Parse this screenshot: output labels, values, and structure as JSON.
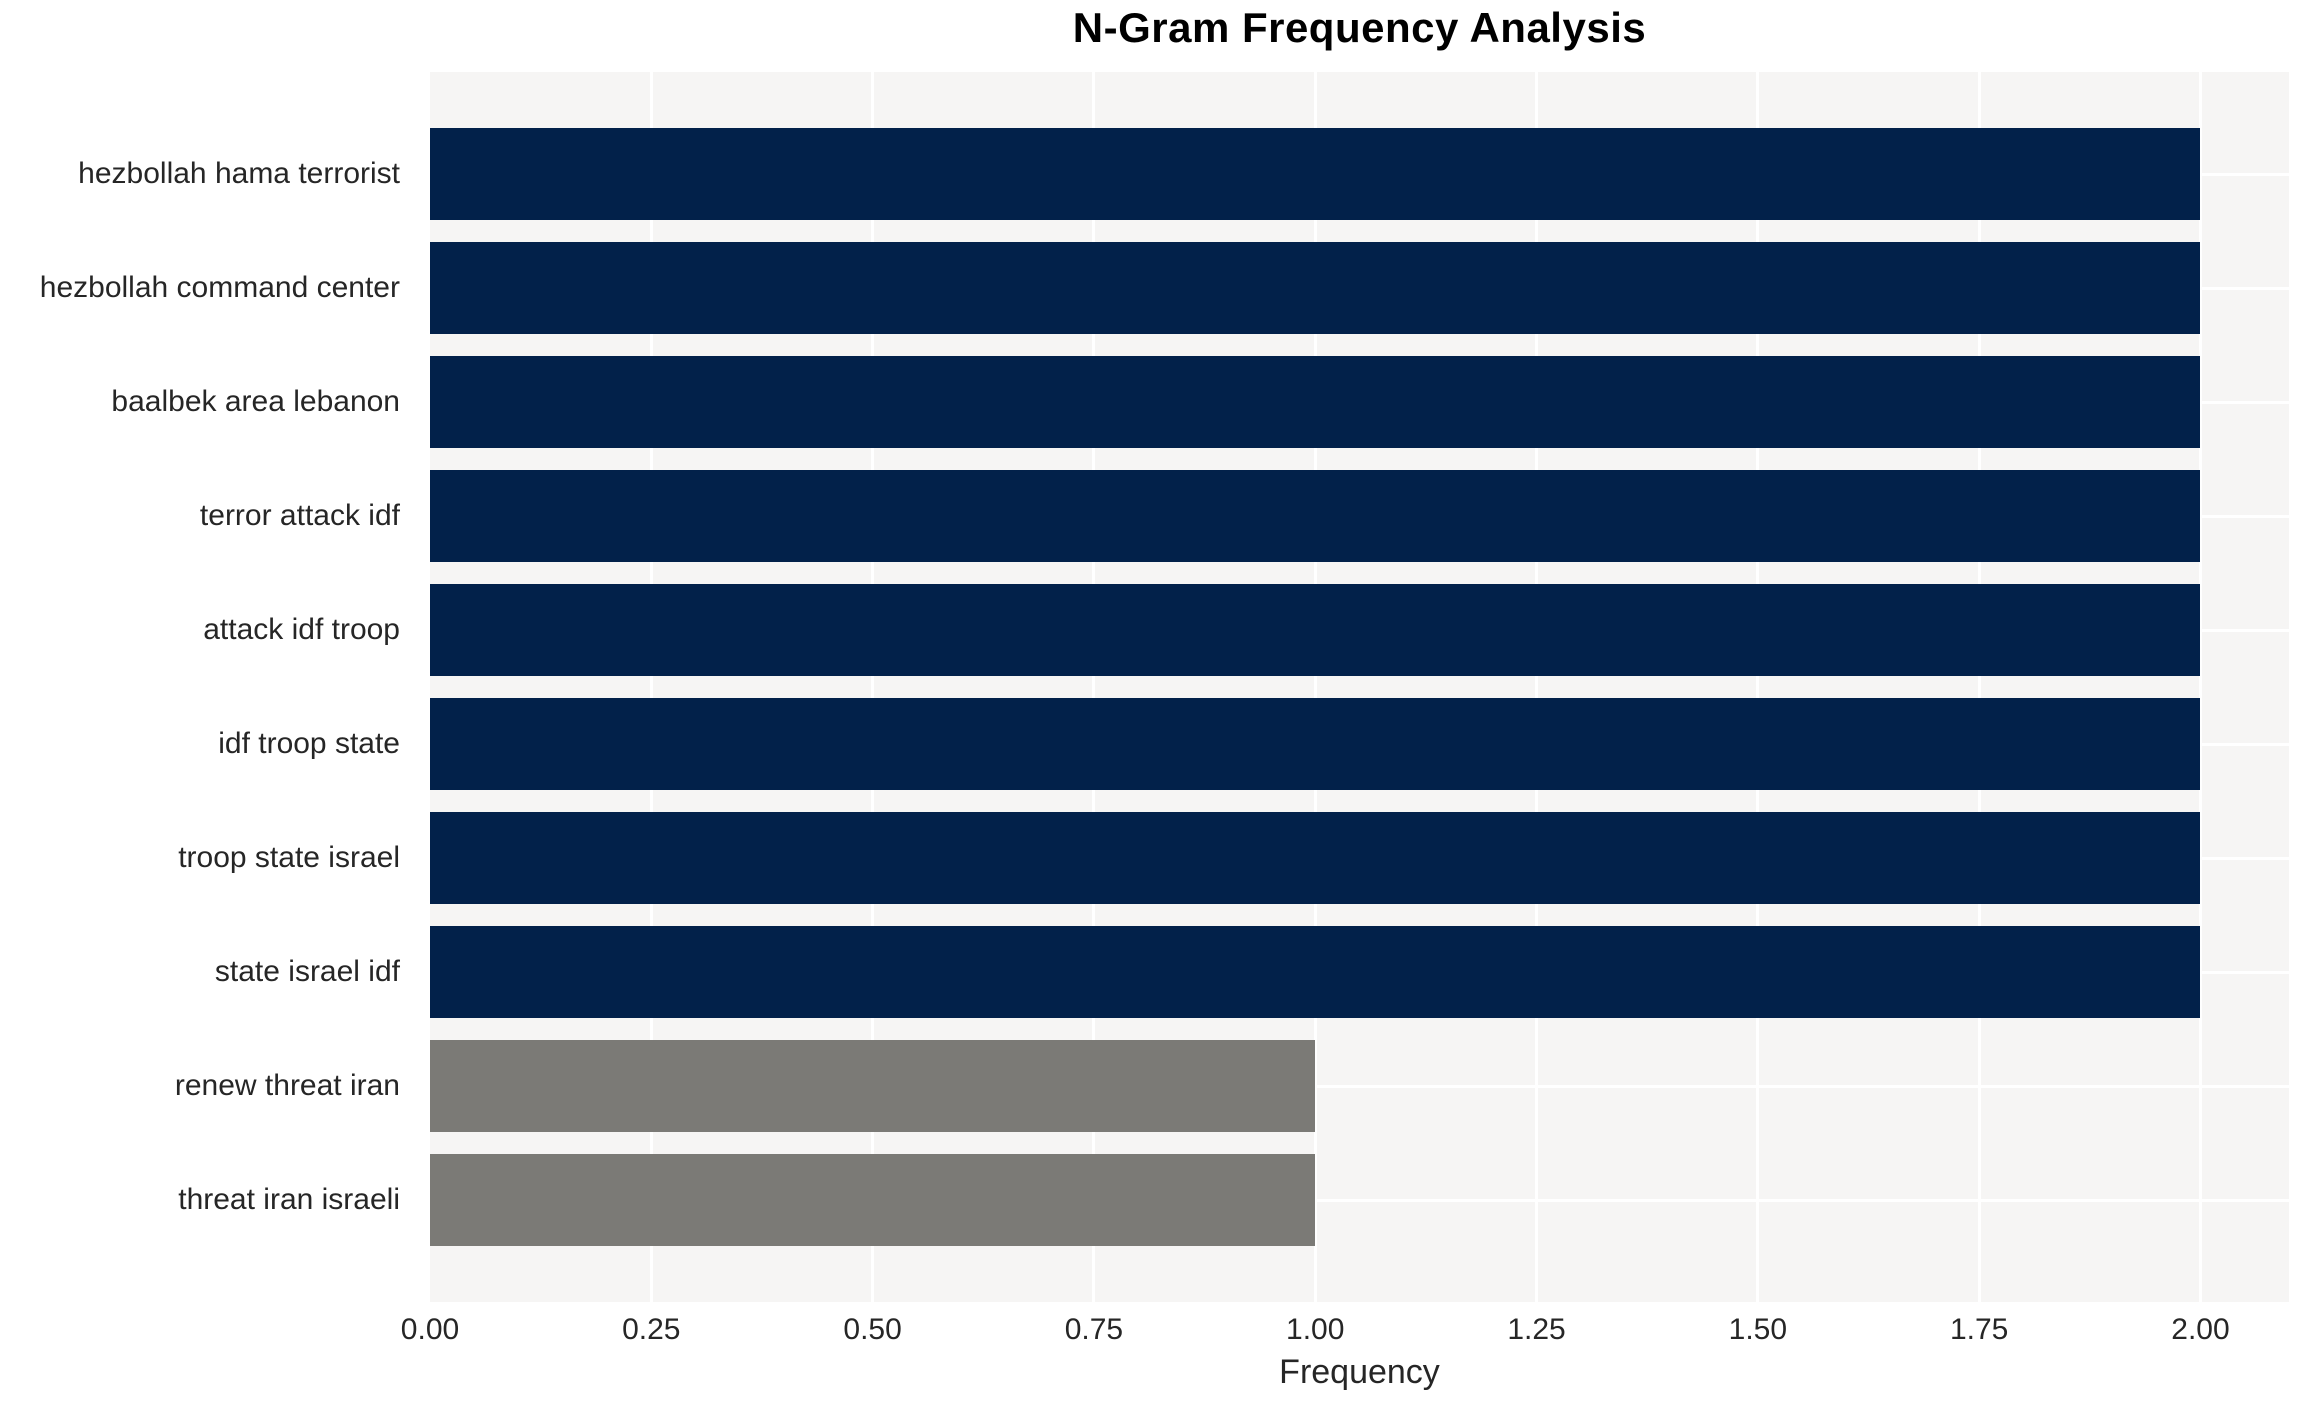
{
  "title": "N-Gram Frequency Analysis",
  "chart_data": {
    "type": "bar",
    "orientation": "horizontal",
    "title": "N-Gram Frequency Analysis",
    "xlabel": "Frequency",
    "ylabel": "",
    "categories": [
      "hezbollah hama terrorist",
      "hezbollah command center",
      "baalbek area lebanon",
      "terror attack idf",
      "attack idf troop",
      "idf troop state",
      "troop state israel",
      "state israel idf",
      "renew threat iran",
      "threat iran israeli"
    ],
    "values": [
      2,
      2,
      2,
      2,
      2,
      2,
      2,
      2,
      1,
      1
    ],
    "bar_colors": [
      "#02214a",
      "#02214a",
      "#02214a",
      "#02214a",
      "#02214a",
      "#02214a",
      "#02214a",
      "#02214a",
      "#7b7a76",
      "#7b7a76"
    ],
    "xlim": [
      0,
      2.1
    ],
    "xticks": [
      0,
      0.25,
      0.5,
      0.75,
      1.0,
      1.25,
      1.5,
      1.75,
      2.0
    ],
    "xtick_labels": [
      "0.00",
      "0.25",
      "0.50",
      "0.75",
      "1.00",
      "1.25",
      "1.50",
      "1.75",
      "2.00"
    ],
    "grid": true,
    "legend_position": "none",
    "colors": {
      "bar_primary": "#02214a",
      "bar_secondary": "#7b7a76",
      "plot_background": "#f6f5f4",
      "grid_line": "#ffffff",
      "tick_text": "#262626",
      "title_text": "#000000"
    }
  }
}
